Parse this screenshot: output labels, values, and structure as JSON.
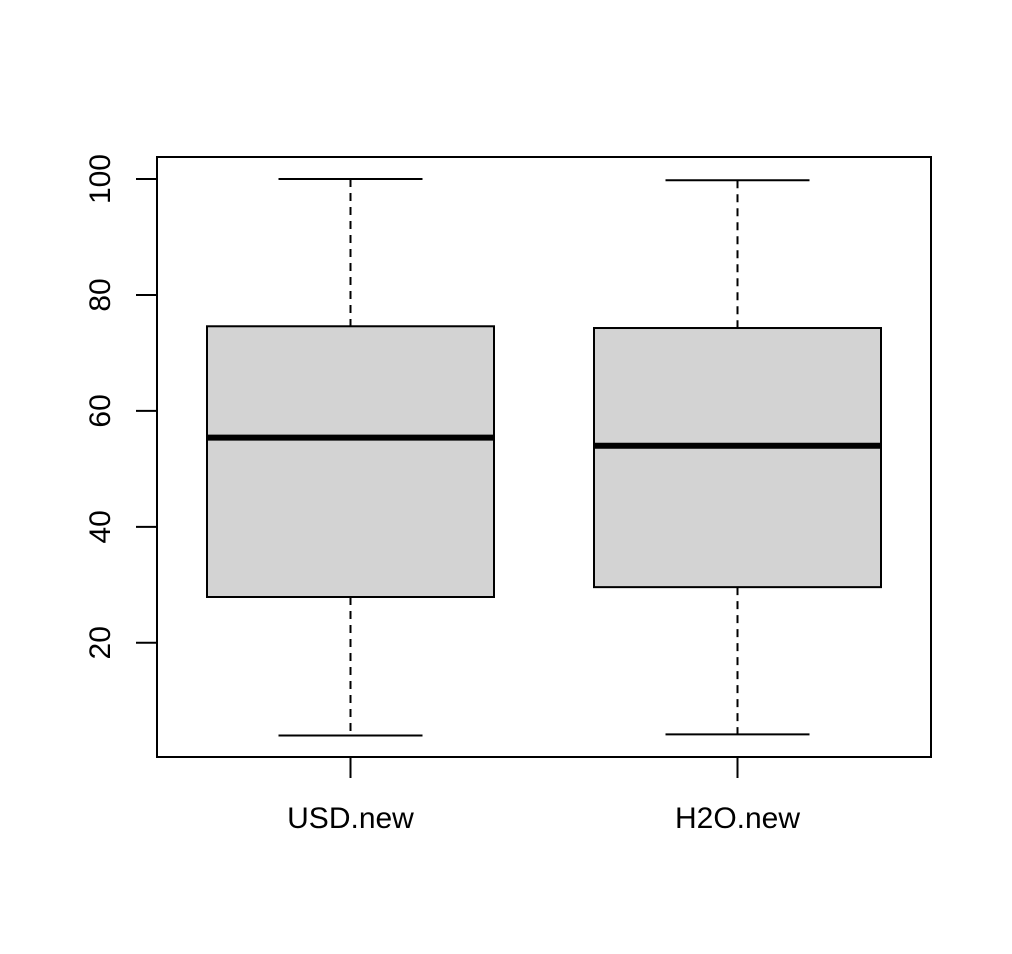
{
  "chart_data": {
    "type": "box",
    "title": "",
    "xlabel": "",
    "ylabel": "",
    "ylim": [
      0.3,
      103.8
    ],
    "yticks": [
      20,
      40,
      60,
      80,
      100
    ],
    "ytick_labels": [
      "20",
      "40",
      "60",
      "80",
      "100"
    ],
    "grid": false,
    "categories": [
      "USD.new",
      "H2O.new"
    ],
    "boxes": [
      {
        "category": "USD.new",
        "whisker_low": 4.0,
        "q1": 27.9,
        "median": 55.4,
        "q3": 74.6,
        "whisker_high": 100.0
      },
      {
        "category": "H2O.new",
        "whisker_low": 4.2,
        "q1": 29.6,
        "median": 54.0,
        "q3": 74.3,
        "whisker_high": 99.8
      }
    ],
    "colors": {
      "box_fill": "#d3d3d3",
      "stroke": "#000000"
    }
  }
}
